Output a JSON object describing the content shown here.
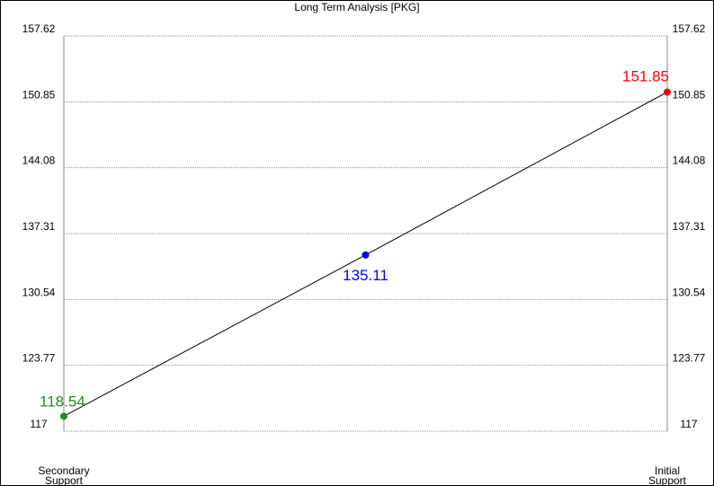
{
  "chart_data": {
    "type": "line",
    "title": "Long Term Analysis [PKG]",
    "xlabel": "",
    "ylabel": "",
    "ylim": [
      117,
      157.62
    ],
    "yticks": [
      "157.62",
      "150.85",
      "144.08",
      "137.31",
      "130.54",
      "123.77",
      "117"
    ],
    "grid": true,
    "categories": [
      {
        "line1": "Secondary",
        "line2": "Support"
      },
      {
        "line1": "Initial",
        "line2": "Support"
      }
    ],
    "points": [
      {
        "x": 0,
        "y": 118.54,
        "label": "118.54",
        "color": "#228b22"
      },
      {
        "x": 0.5,
        "y": 135.11,
        "label": "135.11",
        "color": "#0000ff"
      },
      {
        "x": 1,
        "y": 151.85,
        "label": "151.85",
        "color": "#ff0000"
      }
    ],
    "line_color": "#000000",
    "grid_color": "#7f8fb0"
  }
}
